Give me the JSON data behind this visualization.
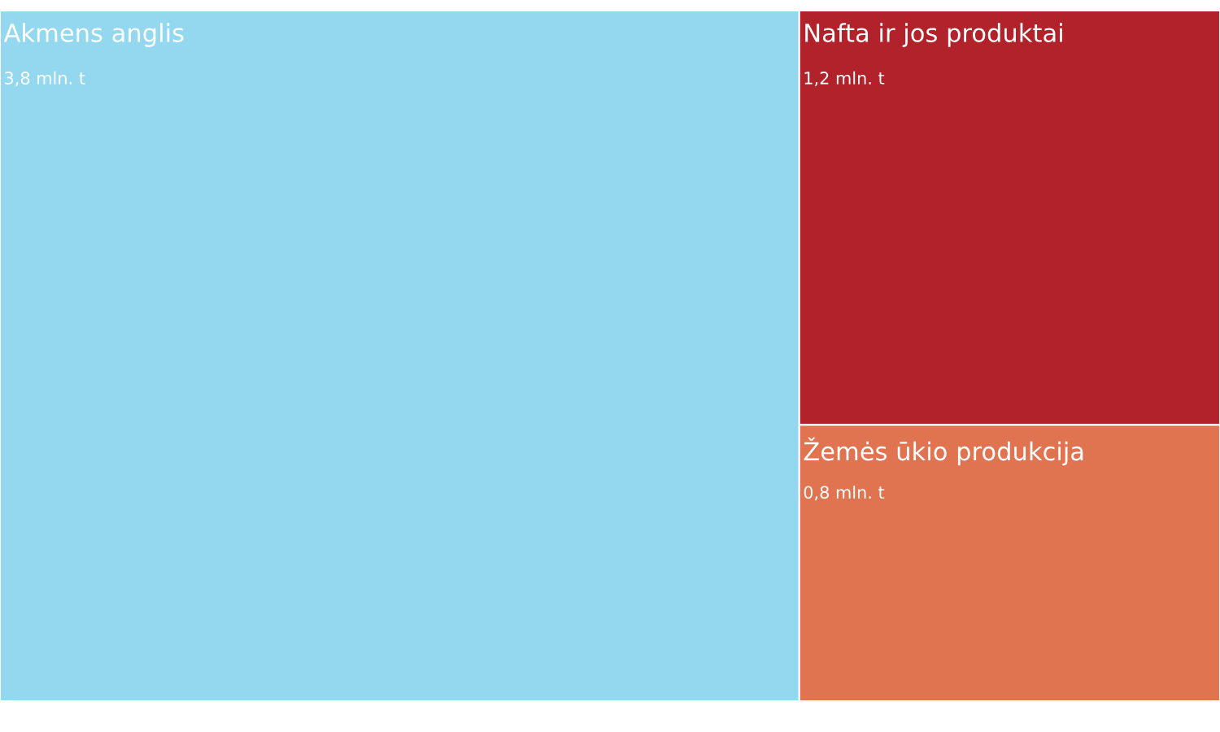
{
  "chart_data": {
    "type": "other",
    "categories": [
      "Akmens anglis",
      "Nafta ir jos produktai",
      "Žemės ūkio produkcija"
    ],
    "values": [
      3.8,
      1.2,
      0.8
    ],
    "value_labels": [
      "3,8 mln. t",
      "1,2 mln. t",
      "0,8 mln. t"
    ],
    "colors": [
      "#93d8ef",
      "#b2222b",
      "#e07350"
    ]
  }
}
